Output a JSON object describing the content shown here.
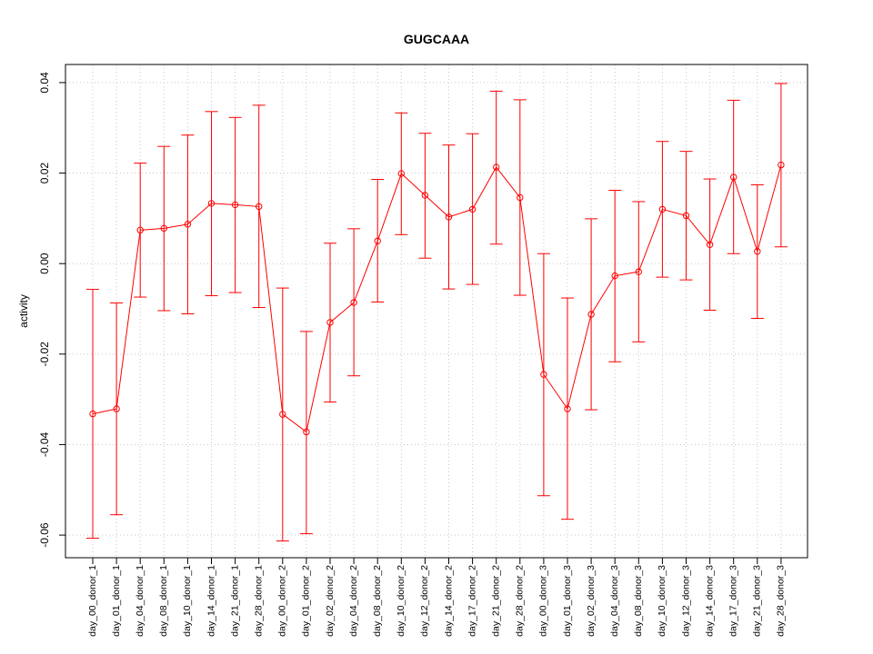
{
  "chart_data": {
    "type": "line",
    "title": "GUGCAAA",
    "xlabel": "",
    "ylabel": "activity",
    "ylim": [
      -0.065,
      0.044
    ],
    "yticks": [
      -0.06,
      -0.04,
      -0.02,
      0.0,
      0.02,
      0.04
    ],
    "ytick_labels": [
      "-0.06",
      "-0.04",
      "-0.02",
      "0.00",
      "0.02",
      "0.04"
    ],
    "grid": true,
    "line_color": "#ff0000",
    "grid_color": "#c8c8c8",
    "categories": [
      "day_00_donor_1",
      "day_01_donor_1",
      "day_04_donor_1",
      "day_08_donor_1",
      "day_10_donor_1",
      "day_14_donor_1",
      "day_21_donor_1",
      "day_28_donor_1",
      "day_00_donor_2",
      "day_01_donor_2",
      "day_02_donor_2",
      "day_04_donor_2",
      "day_08_donor_2",
      "day_10_donor_2",
      "day_12_donor_2",
      "day_14_donor_2",
      "day_17_donor_2",
      "day_21_donor_2",
      "day_28_donor_2",
      "day_00_donor_3",
      "day_01_donor_3",
      "day_02_donor_3",
      "day_04_donor_3",
      "day_08_donor_3",
      "day_10_donor_3",
      "day_12_donor_3",
      "day_14_donor_3",
      "day_17_donor_3",
      "day_21_donor_3",
      "day_28_donor_3"
    ],
    "series": [
      {
        "values": [
          -0.0332,
          -0.0321,
          0.0074,
          0.0078,
          0.0087,
          0.0133,
          0.013,
          0.0126,
          -0.0333,
          -0.0372,
          -0.013,
          -0.0086,
          0.005,
          0.0199,
          0.0151,
          0.0103,
          0.012,
          0.0213,
          0.0146,
          -0.0245,
          -0.0321,
          -0.0112,
          -0.0027,
          -0.0018,
          0.012,
          0.0106,
          0.0042,
          0.0191,
          0.0027,
          0.0218
        ],
        "upper": [
          -0.0057,
          -0.0087,
          0.0222,
          0.0259,
          0.0284,
          0.0336,
          0.0323,
          0.035,
          -0.0054,
          -0.015,
          0.0045,
          0.0077,
          0.0186,
          0.0333,
          0.0288,
          0.0262,
          0.0287,
          0.0381,
          0.0362,
          0.0022,
          -0.0076,
          0.0099,
          0.0162,
          0.0137,
          0.027,
          0.0248,
          0.0187,
          0.0361,
          0.0174,
          0.0398
        ],
        "lower": [
          -0.0607,
          -0.0555,
          -0.0074,
          -0.0104,
          -0.0111,
          -0.0071,
          -0.0064,
          -0.0097,
          -0.0613,
          -0.0597,
          -0.0306,
          -0.0248,
          -0.0085,
          0.0064,
          0.0012,
          -0.0056,
          -0.0046,
          0.0043,
          -0.007,
          -0.0513,
          -0.0565,
          -0.0323,
          -0.0217,
          -0.0173,
          -0.003,
          -0.0036,
          -0.0103,
          0.0022,
          -0.0121,
          0.0037
        ]
      }
    ]
  }
}
